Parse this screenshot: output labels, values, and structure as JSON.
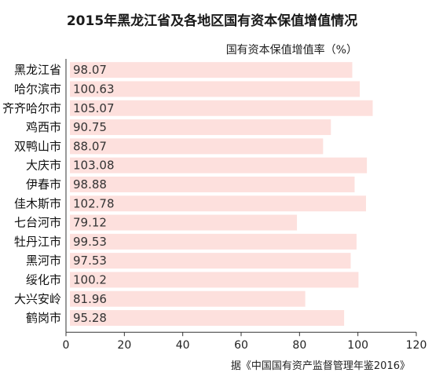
{
  "chart_data": {
    "type": "bar",
    "orientation": "horizontal",
    "title": "2015年黑龙江省及各地区国有资本保值增值情况",
    "unit_label": "国有资本保值增值率（%）",
    "categories": [
      "黑龙江省",
      "哈尔滨市",
      "齐齐哈尔市",
      "鸡西市",
      "双鸭山市",
      "大庆市",
      "伊春市",
      "佳木斯市",
      "七台河市",
      "牡丹江市",
      "黑河市",
      "绥化市",
      "大兴安岭",
      "鹤岗市"
    ],
    "values": [
      98.07,
      100.63,
      105.07,
      90.75,
      88.07,
      103.08,
      98.88,
      102.78,
      79.12,
      99.53,
      97.53,
      100.2,
      81.96,
      95.28
    ],
    "value_labels": [
      "98.07",
      "100.63",
      "105.07",
      "90.75",
      "88.07",
      "103.08",
      "98.88",
      "102.78",
      "79.12",
      "99.53",
      "97.53",
      "100.2",
      "81.96",
      "95.28"
    ],
    "xlim": [
      0,
      120
    ],
    "xticks": [
      "0",
      "20",
      "40",
      "60",
      "80",
      "100",
      "120"
    ],
    "bar_color": "#fde0dd",
    "grid": false,
    "source": "据《中国国有资产监督管理年鉴2016》"
  }
}
